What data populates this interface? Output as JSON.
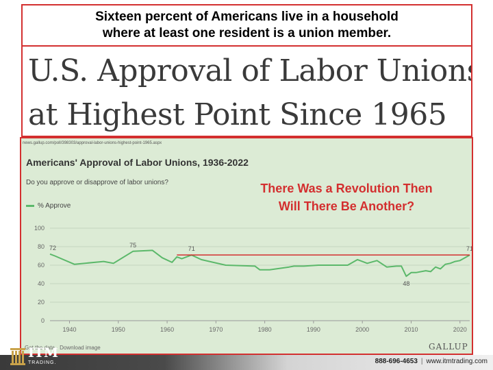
{
  "caption": {
    "line1": "Sixteen percent of Americans live in a household",
    "line2": "where at least one resident is a union member."
  },
  "headline": {
    "line1": "U.S. Approval of Labor Unions",
    "line2": "at Highest Point Since 1965"
  },
  "chart_data": {
    "type": "line",
    "source_url": "news.gallup.com/poll/398303/approval-labor-unions-highest-point-1965.aspx",
    "title": "Americans' Approval of Labor Unions, 1936-2022",
    "subtitle": "Do you approve or disapprove of labor unions?",
    "legend_position": "top-left",
    "grid": "horizontal",
    "xlim": [
      1936,
      2022
    ],
    "ylim": [
      0,
      100
    ],
    "x_ticks": [
      1940,
      1950,
      1960,
      1970,
      1980,
      1990,
      2000,
      2010,
      2020
    ],
    "y_ticks": [
      0,
      20,
      40,
      60,
      80,
      100
    ],
    "series": [
      {
        "name": "% Approve",
        "color": "#5bb86a",
        "x": [
          1936,
          1937,
          1941,
          1947,
          1949,
          1953,
          1957,
          1959,
          1961,
          1962,
          1963,
          1965,
          1967,
          1972,
          1978,
          1979,
          1981,
          1985,
          1986,
          1988,
          1991,
          1997,
          1999,
          2001,
          2003,
          2005,
          2007,
          2008,
          2009,
          2010,
          2011,
          2013,
          2014,
          2015,
          2016,
          2017,
          2018,
          2019,
          2020,
          2021,
          2022
        ],
        "y": [
          72,
          70,
          61,
          64,
          62,
          75,
          76,
          68,
          63,
          69,
          67,
          71,
          66,
          60,
          59,
          55,
          55,
          58,
          59,
          59,
          60,
          60,
          66,
          62,
          65,
          58,
          59,
          59,
          48,
          52,
          52,
          54,
          53,
          58,
          56,
          61,
          62,
          64,
          65,
          68,
          71
        ]
      }
    ],
    "data_labels": [
      {
        "x": 1936,
        "y": 72,
        "text": "72"
      },
      {
        "x": 1953,
        "y": 75,
        "text": "75"
      },
      {
        "x": 1965,
        "y": 71,
        "text": "71"
      },
      {
        "x": 2009,
        "y": 48,
        "text": "48"
      },
      {
        "x": 2022,
        "y": 71,
        "text": "71"
      }
    ],
    "reference_line": {
      "x_start": 1962,
      "x_end": 2022,
      "y": 71,
      "color": "#d32f2f"
    },
    "annotation": {
      "line1": "There Was a Revolution Then",
      "line2": "Will There Be Another?",
      "color": "#d32f2f"
    },
    "footer": "Get the data · Download image",
    "brand": "GALLUP"
  },
  "footer": {
    "logo_name": "ITM",
    "logo_sub": "TRADING.",
    "phone": "888-696-4653",
    "separator": "|",
    "website": "www.itmtrading.com"
  },
  "colors": {
    "frame": "#d32f2f",
    "chart_bg": "#dcebd5",
    "logo_gold": "#c9a24a"
  }
}
